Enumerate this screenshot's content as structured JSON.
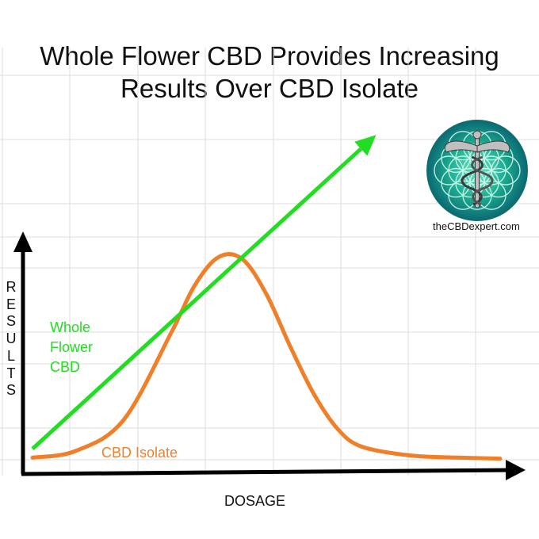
{
  "title": {
    "line1": "Whole Flower CBD Provides Increasing",
    "line2": "Results Over CBD Isolate"
  },
  "logo": {
    "icon": "caduceus-flower-of-life-icon",
    "site": "theCBDexpert.com"
  },
  "colors": {
    "whole_flower": "#22dd22",
    "isolate": "#f07f2a",
    "grid": "#dddddd",
    "axis": "#000000"
  },
  "chart_data": {
    "type": "line",
    "title": "Whole Flower CBD Provides Increasing Results Over CBD Isolate",
    "xlabel": "DOSAGE",
    "ylabel": "RESULTS",
    "grid": true,
    "axis_ticks": false,
    "xlim": [
      0,
      100
    ],
    "ylim": [
      0,
      100
    ],
    "series": [
      {
        "name": "Whole Flower CBD",
        "shape": "straight line with arrowhead",
        "x": [
          1,
          73
        ],
        "y": [
          5,
          149
        ]
      },
      {
        "name": "CBD Isolate",
        "shape": "bell curve",
        "x": [
          1,
          10,
          20,
          30,
          35,
          40,
          45,
          50,
          55,
          60,
          65,
          70,
          80,
          90,
          99
        ],
        "y": [
          1,
          4,
          18,
          58,
          80,
          93,
          92,
          76,
          52,
          30,
          14,
          6,
          2,
          1,
          0.5
        ]
      }
    ]
  }
}
